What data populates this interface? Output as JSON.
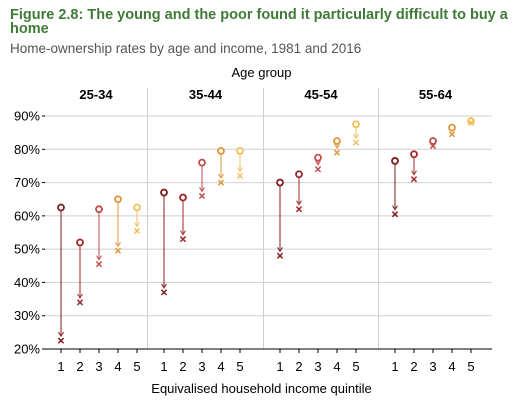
{
  "title": "Figure 2.8: The young and the poor found it particularly difficult to buy a home",
  "subtitle": "Home-ownership rates by age and income, 1981 and 2016",
  "chart_data": {
    "type": "scatter",
    "group_label": "Age group",
    "xlabel": "Equivalised household income quintile",
    "ylabel": "",
    "ylim": [
      20,
      90
    ],
    "yticks": [
      "20%",
      "30%",
      "40%",
      "50%",
      "60%",
      "70%",
      "80%",
      "90%"
    ],
    "categories": [
      "1",
      "2",
      "3",
      "4",
      "5"
    ],
    "colors": [
      "#7f1f1f",
      "#a3262a",
      "#c24b4b",
      "#e2953b",
      "#f2bf5e"
    ],
    "grid": "horizontal",
    "markers": {
      "1981": "circle",
      "2016": "cross"
    },
    "panels": [
      {
        "name": "25-34",
        "values_1981": [
          62.5,
          52,
          62,
          65,
          62.5
        ],
        "values_2016": [
          22.5,
          34,
          45.5,
          49.5,
          55.5
        ]
      },
      {
        "name": "35-44",
        "values_1981": [
          67,
          65.5,
          76,
          79.5,
          79.5
        ],
        "values_2016": [
          37,
          53,
          66,
          70,
          72
        ]
      },
      {
        "name": "45-54",
        "values_1981": [
          70,
          72.5,
          77.5,
          82.5,
          87.5
        ],
        "values_2016": [
          48,
          62,
          74,
          79,
          82
        ]
      },
      {
        "name": "55-64",
        "values_1981": [
          76.5,
          78.5,
          82.5,
          86.5,
          88.5
        ],
        "values_2016": [
          60.5,
          71,
          81,
          84.5,
          88
        ]
      }
    ]
  }
}
